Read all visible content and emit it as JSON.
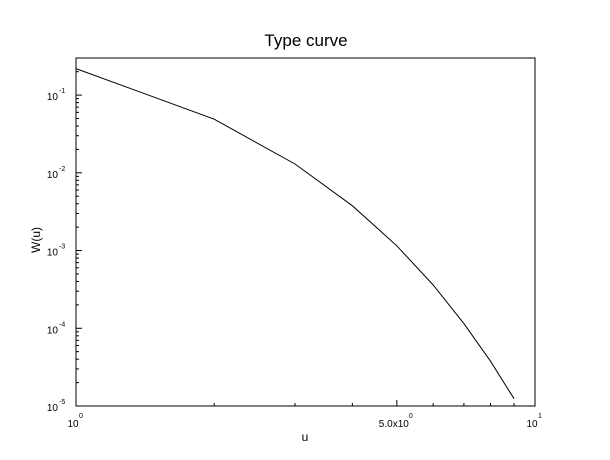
{
  "chart_data": {
    "type": "line",
    "title": "Type curve",
    "xlabel": "u",
    "ylabel": "W(u)",
    "x_scale": "log",
    "y_scale": "log",
    "xlim": [
      1,
      10
    ],
    "ylim": [
      1e-05,
      0.3
    ],
    "grid": false,
    "x_tick_labels": [
      {
        "value": 1,
        "base": "10",
        "sup": "0"
      },
      {
        "value": 5,
        "base": "5.0x10",
        "sup": "0"
      },
      {
        "value": 10,
        "base": "10",
        "sup": "1"
      }
    ],
    "y_tick_labels": [
      {
        "value": 1e-05,
        "base": "10",
        "sup": "-5"
      },
      {
        "value": 0.0001,
        "base": "10",
        "sup": "-4"
      },
      {
        "value": 0.001,
        "base": "10",
        "sup": "-3"
      },
      {
        "value": 0.01,
        "base": "10",
        "sup": "-2"
      },
      {
        "value": 0.1,
        "base": "10",
        "sup": "-1"
      }
    ],
    "series": [
      {
        "color": "#000000",
        "x": [
          1,
          2,
          3,
          4,
          5,
          6,
          7,
          8,
          9
        ],
        "y": [
          0.219,
          0.0489,
          0.013,
          0.00378,
          0.00115,
          0.00036,
          0.000115,
          3.77e-05,
          1.24e-05
        ]
      }
    ]
  }
}
